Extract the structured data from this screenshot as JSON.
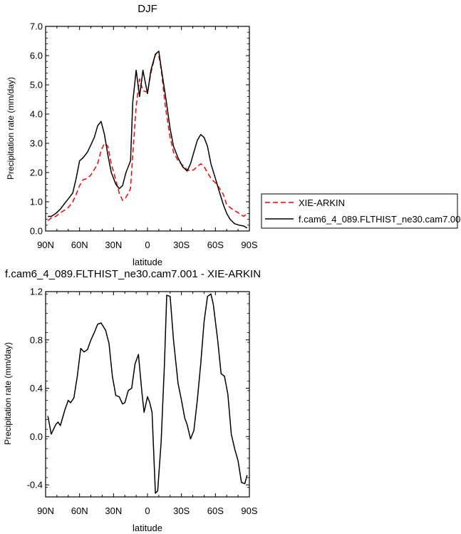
{
  "chart_data": [
    {
      "type": "line",
      "title": "DJF",
      "xlabel": "latitude",
      "ylabel": "Precipitation rate (mm/day)",
      "xlim": [
        90,
        -90
      ],
      "ylim": [
        0,
        7
      ],
      "xticks": [
        90,
        60,
        30,
        0,
        -30,
        -60,
        -90
      ],
      "xticklabels": [
        "90N",
        "60N",
        "30N",
        "0",
        "30S",
        "60S",
        "90S"
      ],
      "yticks": [
        0,
        1,
        2,
        3,
        4,
        5,
        6,
        7
      ],
      "yticklabels": [
        "0.0",
        "1.0",
        "2.0",
        "3.0",
        "4.0",
        "5.0",
        "6.0",
        "7.0"
      ],
      "grid": false,
      "legend": "right",
      "series": [
        {
          "name": "XIE-ARKIN",
          "color": "#ff0000",
          "dash": "dashed",
          "x": [
            88,
            85,
            81,
            77,
            73,
            70,
            66,
            63,
            60,
            57,
            53,
            50,
            47,
            44,
            41,
            38,
            35,
            32,
            28,
            25,
            22,
            19,
            15,
            13,
            10,
            7,
            4,
            0,
            -3,
            -7,
            -10,
            -12,
            -16,
            -20,
            -23,
            -27,
            -31,
            -35,
            -38,
            -41,
            -44,
            -47,
            -50,
            -53,
            -56,
            -60,
            -63,
            -67,
            -70,
            -73,
            -77,
            -81,
            -85,
            -88
          ],
          "y": [
            0.35,
            0.45,
            0.5,
            0.62,
            0.72,
            0.8,
            1.0,
            1.25,
            1.55,
            1.75,
            1.8,
            1.92,
            2.1,
            2.3,
            2.75,
            3.0,
            2.9,
            2.3,
            1.75,
            1.3,
            1.05,
            1.15,
            1.45,
            2.6,
            4.25,
            5.2,
            4.8,
            4.75,
            5.4,
            6.05,
            6.0,
            5.55,
            4.2,
            3.2,
            2.7,
            2.4,
            2.25,
            2.1,
            2.05,
            2.1,
            2.2,
            2.3,
            2.2,
            2.0,
            1.8,
            1.65,
            1.5,
            1.25,
            0.9,
            0.8,
            0.7,
            0.6,
            0.5,
            0.6
          ]
        },
        {
          "name": "f.cam6_4_089.FLTHIST_ne30.cam7.001",
          "color": "#000000",
          "dash": "solid",
          "x": [
            88,
            85,
            81,
            77,
            73,
            70,
            66,
            63,
            60,
            57,
            53,
            50,
            47,
            44,
            41,
            38,
            35,
            32,
            28,
            25,
            22,
            19,
            15,
            13,
            10,
            7,
            4,
            0,
            -3,
            -7,
            -10,
            -12,
            -16,
            -20,
            -23,
            -27,
            -31,
            -35,
            -38,
            -41,
            -44,
            -47,
            -50,
            -53,
            -56,
            -60,
            -63,
            -67,
            -70,
            -73,
            -77,
            -81,
            -85,
            -88
          ],
          "y": [
            0.5,
            0.5,
            0.6,
            0.75,
            0.95,
            1.1,
            1.3,
            1.8,
            2.4,
            2.5,
            2.7,
            2.95,
            3.2,
            3.6,
            3.75,
            3.3,
            2.6,
            2.0,
            1.6,
            1.45,
            1.55,
            2.0,
            2.4,
            4.4,
            5.5,
            4.6,
            5.5,
            4.7,
            5.5,
            6.05,
            6.15,
            5.6,
            4.6,
            3.5,
            2.9,
            2.5,
            2.2,
            2.05,
            2.3,
            2.7,
            3.1,
            3.3,
            3.2,
            2.9,
            2.3,
            1.8,
            1.4,
            0.9,
            0.6,
            0.4,
            0.25,
            0.2,
            0.17,
            0.1
          ]
        }
      ]
    },
    {
      "type": "line",
      "title": "f.cam6_4_089.FLTHIST_ne30.cam7.001 - XIE-ARKIN",
      "xlabel": "latitude",
      "ylabel": "Precipitation rate (mm/day)",
      "xlim": [
        90,
        -90
      ],
      "ylim": [
        -0.5,
        1.2
      ],
      "xticks": [
        90,
        60,
        30,
        0,
        -30,
        -60,
        -90
      ],
      "xticklabels": [
        "90N",
        "60N",
        "30N",
        "0",
        "30S",
        "60S",
        "90S"
      ],
      "yticks": [
        -0.4,
        0,
        0.4,
        0.8,
        1.2
      ],
      "yticklabels": [
        "-0.4",
        "0.0",
        "0.4",
        "0.8",
        "1.2"
      ],
      "grid": false,
      "series": [
        {
          "color": "#000000",
          "dash": "solid",
          "x": [
            88,
            85,
            81,
            79,
            77,
            73,
            70,
            68,
            65,
            62,
            59,
            56,
            53,
            50,
            47,
            44,
            41,
            37,
            34,
            31,
            28,
            25,
            22,
            20,
            17,
            14,
            11,
            8,
            5,
            3,
            0,
            -2,
            -4,
            -7,
            -9,
            -12,
            -15,
            -17,
            -20,
            -23,
            -27,
            -30,
            -33,
            -35,
            -38,
            -41,
            -44,
            -47,
            -50,
            -53,
            -56,
            -58,
            -62,
            -65,
            -68,
            -71,
            -74,
            -77,
            -80,
            -83,
            -86,
            -88
          ],
          "y": [
            0.17,
            0.02,
            0.1,
            0.12,
            0.09,
            0.22,
            0.3,
            0.28,
            0.32,
            0.5,
            0.73,
            0.7,
            0.72,
            0.8,
            0.86,
            0.93,
            0.94,
            0.88,
            0.77,
            0.5,
            0.34,
            0.33,
            0.27,
            0.28,
            0.38,
            0.4,
            0.6,
            0.68,
            0.37,
            0.2,
            0.33,
            0.28,
            0.2,
            -0.47,
            -0.45,
            -0.05,
            0.6,
            1.17,
            1.16,
            0.8,
            0.44,
            0.3,
            0.15,
            0.1,
            -0.02,
            0.05,
            0.3,
            0.6,
            0.95,
            1.16,
            1.18,
            1.1,
            0.8,
            0.52,
            0.5,
            0.35,
            0.02,
            -0.1,
            -0.2,
            -0.38,
            -0.39,
            -0.32
          ]
        }
      ]
    }
  ]
}
